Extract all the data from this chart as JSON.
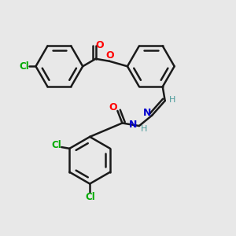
{
  "bg_color": "#e8e8e8",
  "bond_color": "#1a1a1a",
  "bond_width": 1.8,
  "O_color": "#ff0000",
  "N_color": "#0000cc",
  "Cl_color": "#00aa00",
  "H_color": "#4a9a9a",
  "figsize": [
    3.0,
    3.0
  ],
  "dpi": 100,
  "xlim": [
    0,
    10
  ],
  "ylim": [
    0,
    10
  ]
}
